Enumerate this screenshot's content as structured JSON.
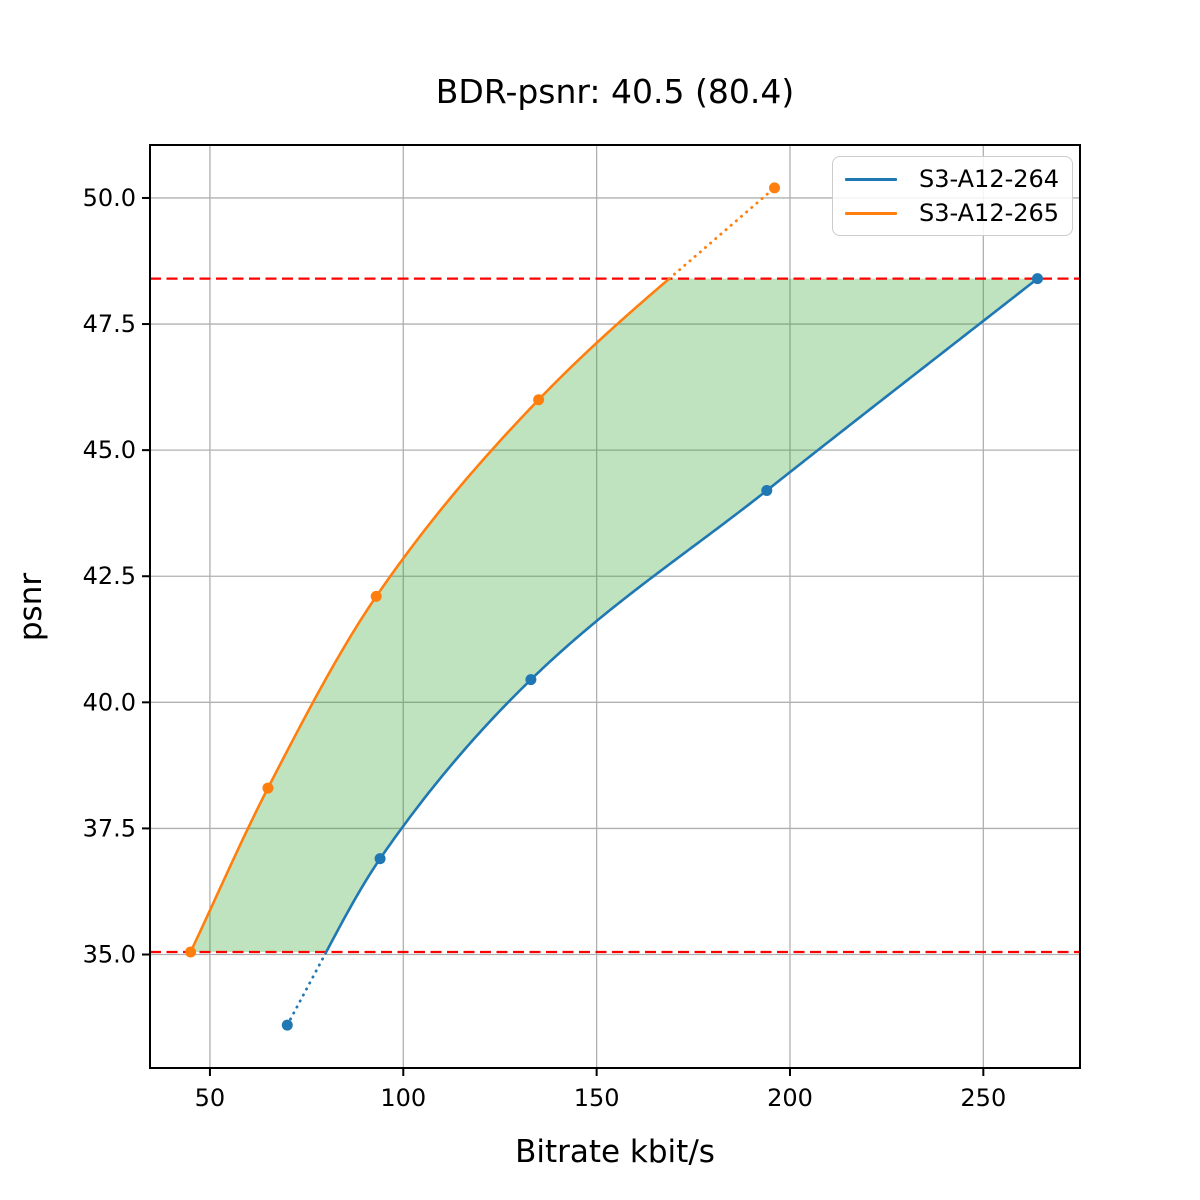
{
  "chart_data": {
    "type": "line",
    "title": "BDR-psnr: 40.5 (80.4)",
    "xlabel": "Bitrate kbit/s",
    "ylabel": "psnr",
    "xlim": [
      34.5,
      275.0
    ],
    "ylim": [
      32.75,
      51.05
    ],
    "xticks": [
      50,
      100,
      150,
      200,
      250
    ],
    "yticks": [
      35.0,
      37.5,
      40.0,
      42.5,
      45.0,
      47.5,
      50.0
    ],
    "grid": true,
    "grid_color": "#b0b0b0",
    "legend_position": "upper right",
    "series": [
      {
        "name": "S3-A12-264",
        "color": "#1f77b4",
        "x": [
          70,
          94,
          133,
          194,
          264
        ],
        "y": [
          33.6,
          36.9,
          40.45,
          44.2,
          48.4
        ]
      },
      {
        "name": "S3-A12-265",
        "color": "#ff7f0e",
        "x": [
          45,
          65,
          93,
          135,
          196
        ],
        "y": [
          35.05,
          38.3,
          42.1,
          46.0,
          50.2
        ]
      }
    ],
    "hlines": [
      {
        "y": 48.4,
        "color": "#ff0000",
        "style": "dashed"
      },
      {
        "y": 35.05,
        "color": "#ff0000",
        "style": "dashed"
      }
    ],
    "shaded_region": {
      "color": "#2ca02c",
      "alpha": 0.3,
      "description": "area between the two rate-distortion curves inside the psnr overlap 35.05 to 48.4"
    },
    "style_notes": "curve segments outside the psnr overlap interval are drawn dotted"
  }
}
